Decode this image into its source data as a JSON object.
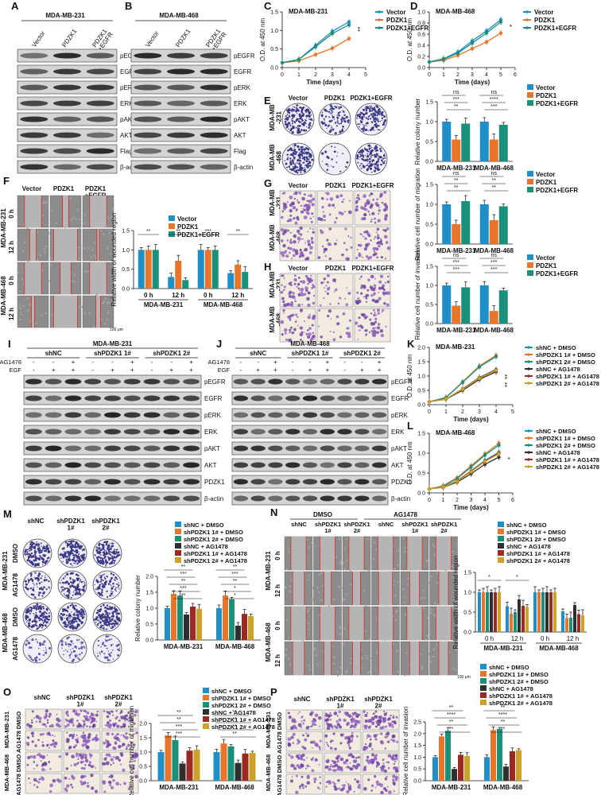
{
  "panels": {
    "A": {
      "letter": "A",
      "title": "MDA-MB-231",
      "lanes": [
        "Vector",
        "PDZK1",
        "PDZK1\n+EGFR"
      ],
      "bands": [
        "pEGFR",
        "EGFR",
        "pERK",
        "ERK",
        "pAKT",
        "AKT",
        "Flag",
        "β-actin"
      ]
    },
    "B": {
      "letter": "B",
      "title": "MDA-MB-468",
      "lanes": [
        "Vector",
        "PDZK1",
        "PDZK1\n+EGFR"
      ],
      "bands": [
        "pEGFR",
        "EGFR",
        "pERK",
        "ERK",
        "pAKT",
        "AKT",
        "Flag",
        "β-actin"
      ]
    },
    "E": {
      "letter": "E",
      "cols": [
        "Vector",
        "PDZK1",
        "PDZK1+EGFR"
      ],
      "rows": [
        "MDA-MB\n-231",
        "MDA-MB\n-468"
      ]
    },
    "F": {
      "letter": "F",
      "cols": [
        "Vector",
        "PDZK1",
        "PDZK1\n+EGFR"
      ],
      "cells": [
        "MDA-MB-231",
        "MDA-MB-468"
      ],
      "times": [
        "0 h",
        "12 h",
        "0 h",
        "12 h"
      ],
      "scale": "100 μm"
    },
    "G": {
      "letter": "G",
      "cols": [
        "Vector",
        "PDZK1",
        "PDZK1+EGFR"
      ],
      "rows": [
        "MDA-MB\n-231",
        "MDA-MB\n-468"
      ]
    },
    "H": {
      "letter": "H",
      "cols": [
        "Vector",
        "PDZK1",
        "PDZK1+EGFR"
      ],
      "rows": [
        "MDA-MB\n-231",
        "MDA-MB\n-468"
      ]
    },
    "I": {
      "letter": "I",
      "title": "MDA-MB-231",
      "groups": [
        "shNC",
        "shPDZK1 1#",
        "shPDZK1 2#"
      ],
      "treat": [
        "AG1478",
        "EGF"
      ],
      "signs_ag": [
        "-",
        "-",
        "+",
        "-",
        "-",
        "+",
        "-",
        "-",
        "+"
      ],
      "signs_egf": [
        "-",
        "+",
        "+",
        "-",
        "+",
        "+",
        "-",
        "+",
        "+"
      ],
      "bands": [
        "pEGFR",
        "EGFR",
        "pERK",
        "ERK",
        "pAKT",
        "AKT",
        "PDZK1",
        "β-actin"
      ]
    },
    "J": {
      "letter": "J",
      "title": "MDA-MB-468",
      "groups": [
        "shNC",
        "shPDZK1 1#",
        "shPDZK1 2#"
      ],
      "treat": [
        "AG1478",
        "EGF"
      ],
      "signs_ag": [
        "-",
        "-",
        "+",
        "-",
        "-",
        "+",
        "-",
        "-",
        "+"
      ],
      "signs_egf": [
        "-",
        "+",
        "+",
        "-",
        "+",
        "+",
        "-",
        "+",
        "+"
      ],
      "bands": [
        "pEGFR",
        "EGFR",
        "pERK",
        "ERK",
        "pAKT",
        "AKT",
        "PDZK1",
        "β-actin"
      ]
    },
    "M": {
      "letter": "M",
      "cols": [
        "shNC",
        "shPDZK1\n1#",
        "shPDZK1\n2#"
      ],
      "cells": [
        "MDA-MB-231",
        "MDA-MB-468"
      ],
      "rows": [
        "DMSO",
        "AG1478",
        "DMSO",
        "AG1478"
      ]
    },
    "N": {
      "letter": "N",
      "treat": [
        "DMSO",
        "AG1478"
      ],
      "cols": [
        "shNC",
        "shPDZK1\n1#",
        "shPDZK1\n2#",
        "shNC",
        "shPDZK1\n1#",
        "shPDZK1\n2#"
      ],
      "cells": [
        "MDA-MB-231",
        "MDA-MB-468"
      ],
      "times": [
        "0 h",
        "12 h",
        "0 h",
        "12 h"
      ],
      "scale": "100 μm"
    },
    "O": {
      "letter": "O",
      "cols": [
        "shNC",
        "shPDZK1\n1#",
        "shPDZK1\n2#"
      ],
      "cells": [
        "MDA-MB-231",
        "MDA-MB-468"
      ],
      "rows": [
        "DMSO",
        "AG1478",
        "DMSO",
        "AG1478"
      ]
    },
    "P": {
      "letter": "P",
      "cols": [
        "shNC",
        "shPDZK1\n1#",
        "shPDZK1\n2#"
      ],
      "cells": [
        "MDA-MB-231",
        "MDA-MB-468"
      ],
      "rows": [
        "DMSO",
        "AG1478",
        "DMSO",
        "AG1478"
      ]
    }
  },
  "colors": {
    "vector": "#1f8fc8",
    "pdzk1": "#e8752a",
    "egfr": "#1a8f7a",
    "shnc_dmso": "#1f8fc8",
    "sh1_dmso": "#e8752a",
    "sh2_dmso": "#1a8f7a",
    "shnc_ag": "#2f2f2f",
    "sh1_ag": "#9b2a22",
    "sh2_ag": "#c9a227"
  },
  "chart_data": [
    {
      "id": "C",
      "type": "line",
      "title": "MDA-MB-231",
      "xlabel": "Time (days)",
      "ylabel": "O.D. at 450 nm",
      "xlim": [
        0,
        5
      ],
      "ylim": [
        0,
        1.5
      ],
      "xticks": [
        0,
        1,
        2,
        3,
        4,
        5
      ],
      "yticks": [
        0.0,
        0.5,
        1.0,
        1.5
      ],
      "x": [
        0,
        1,
        2,
        3,
        4
      ],
      "series": [
        {
          "name": "Vector",
          "values": [
            0.13,
            0.22,
            0.6,
            0.98,
            1.23
          ]
        },
        {
          "name": "PDZK1",
          "values": [
            0.13,
            0.18,
            0.35,
            0.52,
            0.78
          ]
        },
        {
          "name": "PDZK1+EGFR",
          "values": [
            0.13,
            0.22,
            0.56,
            0.92,
            1.15
          ]
        }
      ],
      "annotations": [
        "**"
      ]
    },
    {
      "id": "D",
      "type": "line",
      "title": "MDA-MB-468",
      "xlabel": "Time (days)",
      "ylabel": "O.D. at 450 nm",
      "xlim": [
        0,
        6
      ],
      "ylim": [
        0,
        1.0
      ],
      "xticks": [
        0,
        1,
        2,
        3,
        4,
        5,
        6
      ],
      "yticks": [
        0.0,
        0.2,
        0.4,
        0.6,
        0.8,
        1.0
      ],
      "x": [
        0,
        1,
        2,
        3,
        4,
        5
      ],
      "series": [
        {
          "name": "Vector",
          "values": [
            0.1,
            0.16,
            0.28,
            0.48,
            0.66,
            0.86
          ]
        },
        {
          "name": "PDZK1",
          "values": [
            0.1,
            0.13,
            0.22,
            0.34,
            0.46,
            0.62
          ]
        },
        {
          "name": "PDZK1+EGFR",
          "values": [
            0.1,
            0.15,
            0.26,
            0.44,
            0.62,
            0.82
          ]
        }
      ],
      "annotations": [
        "*"
      ]
    },
    {
      "id": "E-bar",
      "type": "bar",
      "ylabel": "Relative colony number",
      "ylim": [
        0,
        1.5
      ],
      "yticks": [
        0.0,
        0.5,
        1.0,
        1.5
      ],
      "categories": [
        "MDA-MB-231",
        "MDA-MB-468"
      ],
      "series": [
        {
          "name": "Vector",
          "values": [
            1.0,
            1.0
          ]
        },
        {
          "name": "PDZK1",
          "values": [
            0.55,
            0.55
          ]
        },
        {
          "name": "PDZK1+EGFR",
          "values": [
            0.95,
            0.92
          ]
        }
      ],
      "annotations": [
        "ns",
        "***",
        "**",
        "ns",
        "****",
        "***"
      ]
    },
    {
      "id": "G-bar",
      "type": "bar",
      "ylabel": "Relative cell number of migration",
      "ylim": [
        0,
        1.5
      ],
      "yticks": [
        0.0,
        0.5,
        1.0,
        1.5
      ],
      "categories": [
        "MDA-MB-231",
        "MDA-MB-468"
      ],
      "series": [
        {
          "name": "Vector",
          "values": [
            1.0,
            1.0
          ]
        },
        {
          "name": "PDZK1",
          "values": [
            0.5,
            0.6
          ]
        },
        {
          "name": "PDZK1+EGFR",
          "values": [
            1.08,
            0.95
          ]
        }
      ],
      "annotations": [
        "ns",
        "**",
        "**",
        "ns",
        "**",
        "**"
      ]
    },
    {
      "id": "H-bar",
      "type": "bar",
      "ylabel": "Relative cell number of invasion",
      "ylim": [
        0,
        1.5
      ],
      "yticks": [
        0.0,
        0.5,
        1.0,
        1.5
      ],
      "categories": [
        "MDA-MB-231",
        "MDA-MB-468"
      ],
      "series": [
        {
          "name": "Vector",
          "values": [
            1.0,
            1.0
          ]
        },
        {
          "name": "PDZK1",
          "values": [
            0.47,
            0.33
          ]
        },
        {
          "name": "PDZK1+EGFR",
          "values": [
            0.95,
            0.87
          ]
        }
      ],
      "annotations": [
        "ns",
        "***",
        "***",
        "ns",
        "***",
        "***"
      ]
    },
    {
      "id": "F-bar",
      "type": "bar",
      "ylabel": "Relative width of wounded region",
      "ylim": [
        0,
        1.5
      ],
      "yticks": [
        0.0,
        0.5,
        1.0,
        1.5
      ],
      "categories": [
        "0 h",
        "12 h",
        "0 h",
        "12 h"
      ],
      "groups": [
        "MDA-MB-231",
        "MDA-MB-468"
      ],
      "series": [
        {
          "name": "Vector",
          "values": [
            1.0,
            0.3,
            1.0,
            0.4
          ]
        },
        {
          "name": "PDZK1",
          "values": [
            1.0,
            0.72,
            1.0,
            0.62
          ]
        },
        {
          "name": "PDZK1+EGFR",
          "values": [
            1.0,
            0.22,
            1.0,
            0.43
          ]
        }
      ],
      "annotations": [
        "**",
        "**",
        "***",
        "**"
      ]
    },
    {
      "id": "K",
      "type": "line",
      "title": "MDA-MB-231",
      "xlabel": "Time (days)",
      "ylabel": "O.D. at 450 nm",
      "xlim": [
        0,
        5
      ],
      "ylim": [
        0,
        2.0
      ],
      "xticks": [
        0,
        1,
        2,
        3,
        4,
        5
      ],
      "yticks": [
        0.0,
        0.5,
        1.0,
        1.5,
        2.0
      ],
      "x": [
        0,
        1,
        2,
        3,
        4
      ],
      "series": [
        {
          "name": "shNC + DMSO",
          "values": [
            0.1,
            0.2,
            0.55,
            0.95,
            1.23
          ]
        },
        {
          "name": "shPDZK1 1# + DMSO",
          "values": [
            0.1,
            0.25,
            0.8,
            1.35,
            1.72
          ]
        },
        {
          "name": "shPDZK1 2# + DMSO",
          "values": [
            0.1,
            0.25,
            0.78,
            1.32,
            1.68
          ]
        },
        {
          "name": "shNC + AG1478",
          "values": [
            0.1,
            0.19,
            0.5,
            0.88,
            1.15
          ]
        },
        {
          "name": "shPDZK1 1# + AG1478",
          "values": [
            0.1,
            0.2,
            0.55,
            0.94,
            1.22
          ]
        },
        {
          "name": "shPDZK1 2# + AG1478",
          "values": [
            0.1,
            0.2,
            0.54,
            0.92,
            1.2
          ]
        }
      ],
      "annotations": [
        "**",
        "**"
      ]
    },
    {
      "id": "L",
      "type": "line",
      "title": "MDA-MB-468",
      "xlabel": "Time (days)",
      "ylabel": "O.D. at 450 nm",
      "xlim": [
        0,
        6
      ],
      "ylim": [
        0,
        1.5
      ],
      "xticks": [
        0,
        1,
        2,
        3,
        4,
        5,
        6
      ],
      "yticks": [
        0.0,
        0.5,
        1.0,
        1.5
      ],
      "x": [
        0,
        1,
        2,
        3,
        4,
        5
      ],
      "series": [
        {
          "name": "shNC + DMSO",
          "values": [
            0.1,
            0.15,
            0.3,
            0.55,
            0.82,
            1.02
          ]
        },
        {
          "name": "shPDZK1 1# + DMSO",
          "values": [
            0.1,
            0.18,
            0.38,
            0.68,
            0.98,
            1.25
          ]
        },
        {
          "name": "shPDZK1 2# + DMSO",
          "values": [
            0.1,
            0.17,
            0.36,
            0.65,
            0.95,
            1.2
          ]
        },
        {
          "name": "shNC + AG1478",
          "values": [
            0.1,
            0.14,
            0.27,
            0.48,
            0.72,
            0.9
          ]
        },
        {
          "name": "shPDZK1 1# + AG1478",
          "values": [
            0.1,
            0.15,
            0.3,
            0.55,
            0.8,
            1.0
          ]
        },
        {
          "name": "shPDZK1 2# + AG1478",
          "values": [
            0.1,
            0.15,
            0.29,
            0.53,
            0.79,
            0.98
          ]
        }
      ],
      "annotations": [
        "*"
      ]
    },
    {
      "id": "M-bar",
      "type": "bar",
      "ylabel": "Relative colony number",
      "ylim": [
        0,
        2.0
      ],
      "yticks": [
        0.0,
        0.5,
        1.0,
        1.5,
        2.0
      ],
      "categories": [
        "MDA-MB-231",
        "MDA-MB-468"
      ],
      "series": [
        {
          "name": "shNC + DMSO",
          "values": [
            1.0,
            1.0
          ]
        },
        {
          "name": "shPDZK1 1# + DMSO",
          "values": [
            1.45,
            1.4
          ]
        },
        {
          "name": "shPDZK1 2# + DMSO",
          "values": [
            1.4,
            1.28
          ]
        },
        {
          "name": "shNC + AG1478",
          "values": [
            0.8,
            0.45
          ]
        },
        {
          "name": "shPDZK1 1# + AG1478",
          "values": [
            1.05,
            0.82
          ]
        },
        {
          "name": "shPDZK1 2# + AG1478",
          "values": [
            0.98,
            0.75
          ]
        }
      ],
      "annotations": [
        "**",
        "***",
        "**",
        "***",
        "**",
        "**",
        "***",
        "**",
        "*",
        "*"
      ]
    },
    {
      "id": "N-bar",
      "type": "bar",
      "ylabel": "Relative width of wounded region",
      "ylim": [
        0,
        1.5
      ],
      "yticks": [
        0.0,
        0.5,
        1.0,
        1.5
      ],
      "categories": [
        "0 h",
        "12 h",
        "0 h",
        "12 h"
      ],
      "groups": [
        "MDA-MB-231",
        "MDA-MB-468"
      ],
      "series": [
        {
          "name": "shNC + DMSO",
          "values": [
            1.0,
            0.65,
            1.0,
            0.52
          ]
        },
        {
          "name": "shPDZK1 1# + DMSO",
          "values": [
            1.0,
            0.46,
            1.0,
            0.35
          ]
        },
        {
          "name": "shPDZK1 2# + DMSO",
          "values": [
            1.0,
            0.5,
            1.0,
            0.36
          ]
        },
        {
          "name": "shNC + AG1478",
          "values": [
            1.0,
            0.82,
            1.0,
            0.68
          ]
        },
        {
          "name": "shPDZK1 1# + AG1478",
          "values": [
            1.0,
            0.66,
            1.0,
            0.45
          ]
        },
        {
          "name": "shPDZK1 2# + AG1478",
          "values": [
            1.0,
            0.63,
            1.0,
            0.42
          ]
        }
      ],
      "annotations": [
        "*",
        "*"
      ]
    },
    {
      "id": "O-bar",
      "type": "bar",
      "ylabel": "Relative cell number of migration",
      "ylim": [
        0,
        2.0
      ],
      "yticks": [
        0.0,
        0.5,
        1.0,
        1.5,
        2.0
      ],
      "categories": [
        "MDA-MB-231",
        "MDA-MB-468"
      ],
      "series": [
        {
          "name": "shNC + DMSO",
          "values": [
            1.0,
            1.0
          ]
        },
        {
          "name": "shPDZK1 1# + DMSO",
          "values": [
            1.58,
            1.3
          ]
        },
        {
          "name": "shPDZK1 2# + DMSO",
          "values": [
            1.42,
            1.2
          ]
        },
        {
          "name": "shNC + AG1478",
          "values": [
            0.6,
            0.62
          ]
        },
        {
          "name": "shPDZK1 1# + AG1478",
          "values": [
            1.05,
            0.95
          ]
        },
        {
          "name": "shPDZK1 2# + AG1478",
          "values": [
            1.08,
            0.97
          ]
        }
      ],
      "annotations": [
        "**",
        "**",
        "***",
        "***",
        "**",
        "**",
        "**",
        "**"
      ]
    },
    {
      "id": "P-bar",
      "type": "bar",
      "ylabel": "Relative cell number of invasion",
      "ylim": [
        0,
        2.5
      ],
      "yticks": [
        0.0,
        0.5,
        1.0,
        1.5,
        2.0,
        2.5
      ],
      "categories": [
        "MDA-MB-231",
        "MDA-MB-468"
      ],
      "series": [
        {
          "name": "shNC + DMSO",
          "values": [
            1.0,
            1.0
          ]
        },
        {
          "name": "shPDZK1 1# + DMSO",
          "values": [
            1.88,
            2.15
          ]
        },
        {
          "name": "shPDZK1 2# + DMSO",
          "values": [
            2.12,
            2.2
          ]
        },
        {
          "name": "shNC + AG1478",
          "values": [
            0.5,
            0.6
          ]
        },
        {
          "name": "shPDZK1 1# + AG1478",
          "values": [
            1.1,
            1.25
          ]
        },
        {
          "name": "shPDZK1 2# + AG1478",
          "values": [
            1.05,
            1.3
          ]
        }
      ],
      "annotations": [
        "**",
        "****",
        "**",
        "**",
        "**",
        "****",
        "**",
        "**"
      ]
    }
  ]
}
